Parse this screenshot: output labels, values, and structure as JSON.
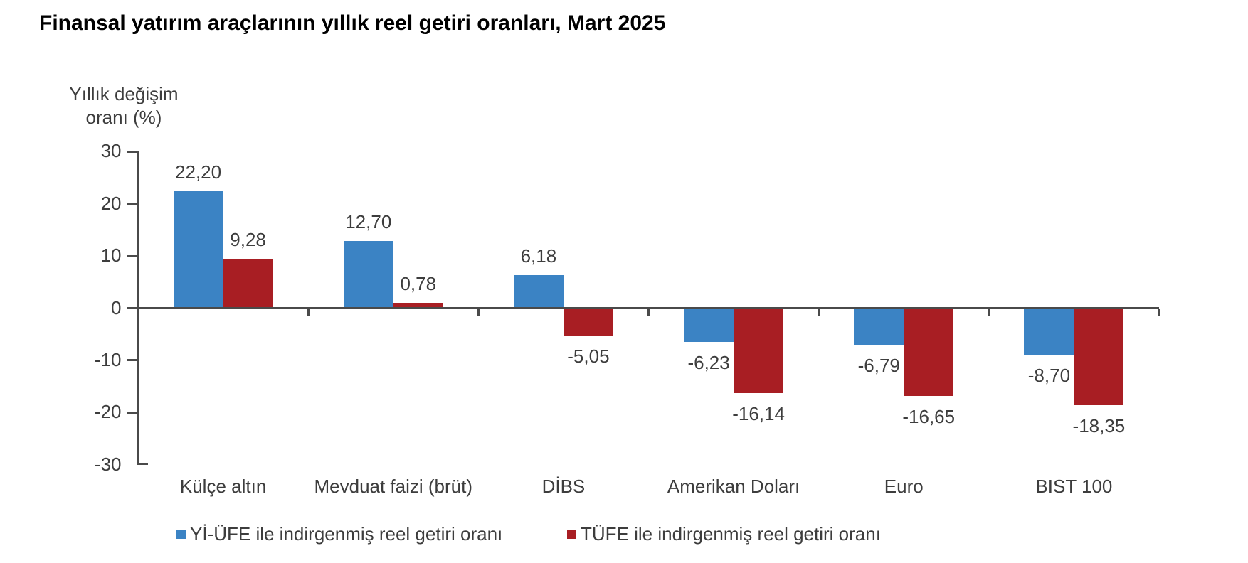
{
  "page": {
    "title": "Finansal yatırım araçlarının yıllık reel getiri oranları, Mart 2025"
  },
  "y_axis": {
    "title_line1": "Yıllık değişim",
    "title_line2": "oranı (%)"
  },
  "chart_data": {
    "type": "bar",
    "title": "Finansal yatırım araçlarının yıllık reel getiri oranları, Mart 2025",
    "ylabel": "Yıllık değişim oranı (%)",
    "categories": [
      "Külçe altın",
      "Mevduat faizi (brüt)",
      "DİBS",
      "Amerikan Doları",
      "Euro",
      "BIST 100"
    ],
    "series": [
      {
        "name": "Yİ-ÜFE ile indirgenmiş reel getiri oranı",
        "color": "#3b83c4",
        "values": [
          22.2,
          12.7,
          6.18,
          -6.23,
          -6.79,
          -8.7
        ],
        "value_labels": [
          "22,20",
          "12,70",
          "6,18",
          "-6,23",
          "-6,79",
          "-8,70"
        ]
      },
      {
        "name": "TÜFE ile indirgenmiş reel getiri oranı",
        "color": "#a81e23",
        "values": [
          9.28,
          0.78,
          -5.05,
          -16.14,
          -16.65,
          -18.35
        ],
        "value_labels": [
          "9,28",
          "0,78",
          "-5,05",
          "-16,14",
          "-16,65",
          "-18,35"
        ]
      }
    ],
    "yticks": [
      30,
      20,
      10,
      0,
      -10,
      -20,
      -30
    ],
    "ylim": [
      -30,
      30
    ],
    "grid": false,
    "legend_position": "bottom",
    "decimal_separator": ","
  },
  "colors": {
    "axis": "#4a4a4a",
    "text": "#3d3d3d",
    "title": "#000000",
    "series_blue": "#3b83c4",
    "series_red": "#a81e23"
  }
}
